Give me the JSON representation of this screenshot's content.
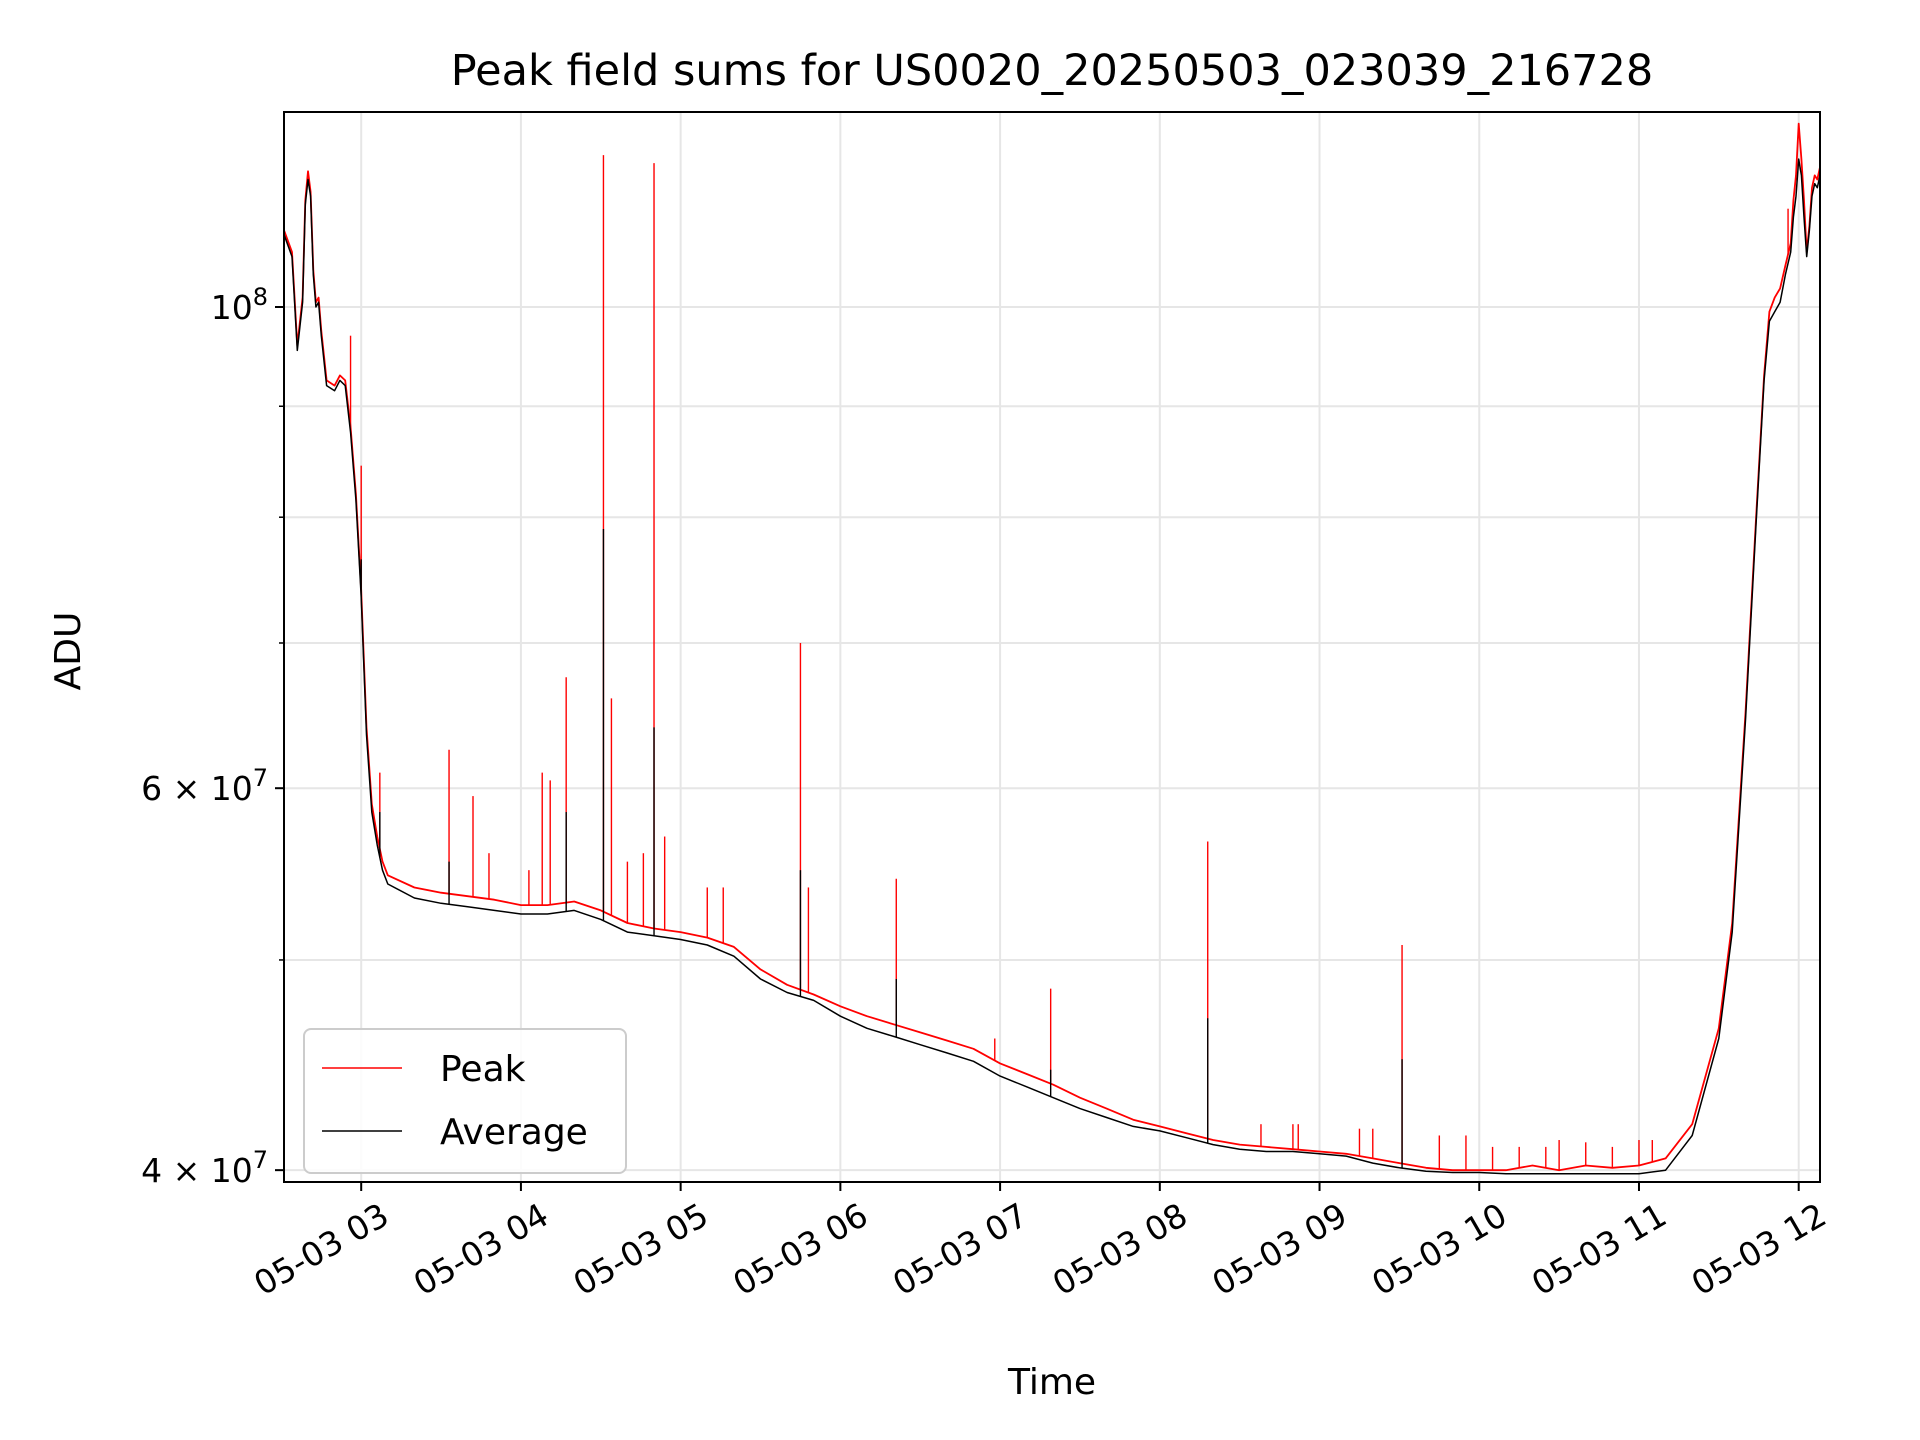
{
  "chart_data": {
    "type": "line",
    "title": "Peak field sums for US0020_20250503_023039_216728",
    "xlabel": "Time",
    "ylabel": "ADU",
    "yscale": "log",
    "xlim": [
      "2025-05-03 02:31",
      "2025-05-03 12:08"
    ],
    "ylim": [
      39500000,
      123000000
    ],
    "grid": true,
    "legend": "lower-left",
    "x_ticks": [
      {
        "t": "2025-05-03 03:00",
        "label": "05-03 03"
      },
      {
        "t": "2025-05-03 04:00",
        "label": "05-03 04"
      },
      {
        "t": "2025-05-03 05:00",
        "label": "05-03 05"
      },
      {
        "t": "2025-05-03 06:00",
        "label": "05-03 06"
      },
      {
        "t": "2025-05-03 07:00",
        "label": "05-03 07"
      },
      {
        "t": "2025-05-03 08:00",
        "label": "05-03 08"
      },
      {
        "t": "2025-05-03 09:00",
        "label": "05-03 09"
      },
      {
        "t": "2025-05-03 10:00",
        "label": "05-03 10"
      },
      {
        "t": "2025-05-03 11:00",
        "label": "05-03 11"
      },
      {
        "t": "2025-05-03 12:00",
        "label": "05-03 12"
      }
    ],
    "y_major_ticks": [
      {
        "value": 40000000,
        "base": "4",
        "exp": "7"
      },
      {
        "value": 60000000,
        "base": "6",
        "exp": "7"
      },
      {
        "value": 100000000,
        "base": "",
        "exp": "8"
      }
    ],
    "y_minor_gridlines": [
      50000000,
      70000000,
      80000000,
      90000000
    ],
    "series": [
      {
        "name": "Peak",
        "color": "#ff0000",
        "points": [
          [
            "02:31",
            108500000
          ],
          [
            "02:34",
            106000000
          ],
          [
            "02:36",
            96000000
          ],
          [
            "02:38",
            101000000
          ],
          [
            "02:39",
            112000000
          ],
          [
            "02:40",
            115500000
          ],
          [
            "02:41",
            113000000
          ],
          [
            "02:42",
            104000000
          ],
          [
            "02:43",
            100500000
          ],
          [
            "02:44",
            101000000
          ],
          [
            "02:45",
            97500000
          ],
          [
            "02:47",
            92500000
          ],
          [
            "02:50",
            92000000
          ],
          [
            "02:52",
            93000000
          ],
          [
            "02:54",
            92500000
          ],
          [
            "02:56",
            88000000
          ],
          [
            "02:58",
            82000000
          ],
          [
            "03:00",
            74000000
          ],
          [
            "03:02",
            64000000
          ],
          [
            "03:04",
            59000000
          ],
          [
            "03:06",
            57000000
          ],
          [
            "03:08",
            55500000
          ],
          [
            "03:10",
            54700000
          ],
          [
            "03:20",
            54000000
          ],
          [
            "03:30",
            53700000
          ],
          [
            "03:40",
            53500000
          ],
          [
            "03:50",
            53300000
          ],
          [
            "04:00",
            53000000
          ],
          [
            "04:10",
            53000000
          ],
          [
            "04:20",
            53200000
          ],
          [
            "04:30",
            52700000
          ],
          [
            "04:40",
            52000000
          ],
          [
            "04:50",
            51700000
          ],
          [
            "05:00",
            51500000
          ],
          [
            "05:10",
            51200000
          ],
          [
            "05:20",
            50700000
          ],
          [
            "05:30",
            49500000
          ],
          [
            "05:40",
            48700000
          ],
          [
            "05:50",
            48200000
          ],
          [
            "06:00",
            47600000
          ],
          [
            "06:10",
            47100000
          ],
          [
            "06:20",
            46700000
          ],
          [
            "06:30",
            46300000
          ],
          [
            "06:40",
            45900000
          ],
          [
            "06:50",
            45500000
          ],
          [
            "07:00",
            44800000
          ],
          [
            "07:10",
            44300000
          ],
          [
            "07:20",
            43800000
          ],
          [
            "07:30",
            43200000
          ],
          [
            "07:40",
            42700000
          ],
          [
            "07:50",
            42200000
          ],
          [
            "08:00",
            41900000
          ],
          [
            "08:10",
            41600000
          ],
          [
            "08:20",
            41300000
          ],
          [
            "08:30",
            41100000
          ],
          [
            "08:40",
            41000000
          ],
          [
            "08:50",
            40900000
          ],
          [
            "09:00",
            40800000
          ],
          [
            "09:10",
            40700000
          ],
          [
            "09:20",
            40500000
          ],
          [
            "09:30",
            40300000
          ],
          [
            "09:40",
            40100000
          ],
          [
            "09:50",
            40000000
          ],
          [
            "10:00",
            40000000
          ],
          [
            "10:10",
            40000000
          ],
          [
            "10:20",
            40200000
          ],
          [
            "10:30",
            40000000
          ],
          [
            "10:40",
            40200000
          ],
          [
            "10:50",
            40100000
          ],
          [
            "11:00",
            40200000
          ],
          [
            "11:10",
            40500000
          ],
          [
            "11:20",
            42000000
          ],
          [
            "11:30",
            46500000
          ],
          [
            "11:35",
            52000000
          ],
          [
            "11:40",
            65000000
          ],
          [
            "11:44",
            80000000
          ],
          [
            "11:47",
            93000000
          ],
          [
            "11:49",
            99500000
          ],
          [
            "11:51",
            101000000
          ],
          [
            "11:53",
            102000000
          ],
          [
            "11:55",
            104500000
          ],
          [
            "11:57",
            107000000
          ],
          [
            "11:58",
            112000000
          ],
          [
            "11:59",
            115000000
          ],
          [
            "12:00",
            121500000
          ],
          [
            "12:01",
            117000000
          ],
          [
            "12:02",
            112000000
          ],
          [
            "12:03",
            106000000
          ],
          [
            "12:04",
            109000000
          ],
          [
            "12:05",
            113500000
          ],
          [
            "12:06",
            115000000
          ],
          [
            "12:07",
            114500000
          ],
          [
            "12:08",
            116000000
          ]
        ],
        "spikes": [
          [
            "02:56",
            97000000
          ],
          [
            "03:00",
            84500000
          ],
          [
            "03:07",
            61000000
          ],
          [
            "03:33",
            62500000
          ],
          [
            "03:42",
            59500000
          ],
          [
            "03:48",
            56000000
          ],
          [
            "04:03",
            55000000
          ],
          [
            "04:08",
            61000000
          ],
          [
            "04:11",
            60500000
          ],
          [
            "04:17",
            67500000
          ],
          [
            "04:31",
            117500000
          ],
          [
            "04:34",
            66000000
          ],
          [
            "04:40",
            55500000
          ],
          [
            "04:46",
            56000000
          ],
          [
            "04:50",
            116500000
          ],
          [
            "04:54",
            57000000
          ],
          [
            "05:10",
            54000000
          ],
          [
            "05:16",
            54000000
          ],
          [
            "05:45",
            70000000
          ],
          [
            "05:48",
            54000000
          ],
          [
            "06:21",
            54500000
          ],
          [
            "06:58",
            46000000
          ],
          [
            "07:19",
            48500000
          ],
          [
            "08:18",
            56700000
          ],
          [
            "08:38",
            42000000
          ],
          [
            "08:50",
            42000000
          ],
          [
            "08:52",
            42000000
          ],
          [
            "09:15",
            41800000
          ],
          [
            "09:20",
            41800000
          ],
          [
            "09:31",
            50800000
          ],
          [
            "09:45",
            41500000
          ],
          [
            "09:55",
            41500000
          ],
          [
            "10:05",
            41000000
          ],
          [
            "10:15",
            41000000
          ],
          [
            "10:25",
            41000000
          ],
          [
            "10:30",
            41300000
          ],
          [
            "10:40",
            41200000
          ],
          [
            "10:50",
            41000000
          ],
          [
            "11:00",
            41300000
          ],
          [
            "11:05",
            41300000
          ],
          [
            "11:56",
            111000000
          ]
        ]
      },
      {
        "name": "Average",
        "color": "#000000",
        "points": [
          [
            "02:31",
            108000000
          ],
          [
            "02:34",
            105500000
          ],
          [
            "02:36",
            95500000
          ],
          [
            "02:38",
            100500000
          ],
          [
            "02:39",
            111500000
          ],
          [
            "02:40",
            114500000
          ],
          [
            "02:41",
            112500000
          ],
          [
            "02:42",
            103500000
          ],
          [
            "02:43",
            100000000
          ],
          [
            "02:44",
            100500000
          ],
          [
            "02:45",
            97000000
          ],
          [
            "02:47",
            92000000
          ],
          [
            "02:50",
            91500000
          ],
          [
            "02:52",
            92500000
          ],
          [
            "02:54",
            92000000
          ],
          [
            "02:56",
            87500000
          ],
          [
            "02:58",
            81500000
          ],
          [
            "03:00",
            73500000
          ],
          [
            "03:02",
            63500000
          ],
          [
            "03:04",
            58500000
          ],
          [
            "03:06",
            56500000
          ],
          [
            "03:08",
            55000000
          ],
          [
            "03:10",
            54200000
          ],
          [
            "03:20",
            53400000
          ],
          [
            "03:30",
            53100000
          ],
          [
            "03:40",
            52900000
          ],
          [
            "03:50",
            52700000
          ],
          [
            "04:00",
            52500000
          ],
          [
            "04:10",
            52500000
          ],
          [
            "04:20",
            52700000
          ],
          [
            "04:30",
            52200000
          ],
          [
            "04:40",
            51500000
          ],
          [
            "04:50",
            51300000
          ],
          [
            "05:00",
            51100000
          ],
          [
            "05:10",
            50800000
          ],
          [
            "05:20",
            50200000
          ],
          [
            "05:30",
            49000000
          ],
          [
            "05:40",
            48300000
          ],
          [
            "05:50",
            47900000
          ],
          [
            "06:00",
            47100000
          ],
          [
            "06:10",
            46500000
          ],
          [
            "06:20",
            46100000
          ],
          [
            "06:30",
            45700000
          ],
          [
            "06:40",
            45300000
          ],
          [
            "06:50",
            44900000
          ],
          [
            "07:00",
            44200000
          ],
          [
            "07:10",
            43700000
          ],
          [
            "07:20",
            43200000
          ],
          [
            "07:30",
            42700000
          ],
          [
            "07:40",
            42300000
          ],
          [
            "07:50",
            41900000
          ],
          [
            "08:00",
            41700000
          ],
          [
            "08:10",
            41400000
          ],
          [
            "08:20",
            41100000
          ],
          [
            "08:30",
            40900000
          ],
          [
            "08:40",
            40800000
          ],
          [
            "08:50",
            40800000
          ],
          [
            "09:00",
            40700000
          ],
          [
            "09:10",
            40600000
          ],
          [
            "09:20",
            40300000
          ],
          [
            "09:30",
            40100000
          ],
          [
            "09:40",
            39950000
          ],
          [
            "09:50",
            39900000
          ],
          [
            "10:00",
            39900000
          ],
          [
            "10:10",
            39850000
          ],
          [
            "10:20",
            39850000
          ],
          [
            "10:30",
            39850000
          ],
          [
            "10:40",
            39850000
          ],
          [
            "10:50",
            39850000
          ],
          [
            "11:00",
            39850000
          ],
          [
            "11:10",
            40000000
          ],
          [
            "11:20",
            41500000
          ],
          [
            "11:30",
            46000000
          ],
          [
            "11:35",
            51500000
          ],
          [
            "11:40",
            64500000
          ],
          [
            "11:44",
            79500000
          ],
          [
            "11:47",
            92500000
          ],
          [
            "11:49",
            98500000
          ],
          [
            "11:51",
            99500000
          ],
          [
            "11:53",
            100500000
          ],
          [
            "11:55",
            103500000
          ],
          [
            "11:57",
            106000000
          ],
          [
            "11:58",
            110000000
          ],
          [
            "11:59",
            112500000
          ],
          [
            "12:00",
            117000000
          ],
          [
            "12:01",
            115000000
          ],
          [
            "12:02",
            110000000
          ],
          [
            "12:03",
            105500000
          ],
          [
            "12:04",
            108500000
          ],
          [
            "12:05",
            112500000
          ],
          [
            "12:06",
            114000000
          ],
          [
            "12:07",
            113500000
          ],
          [
            "12:08",
            115000000
          ]
        ],
        "spikes": [
          [
            "03:00",
            76500000
          ],
          [
            "03:07",
            58500000
          ],
          [
            "03:33",
            55500000
          ],
          [
            "04:17",
            58500000
          ],
          [
            "04:31",
            79000000
          ],
          [
            "04:50",
            64000000
          ],
          [
            "05:45",
            55000000
          ],
          [
            "06:21",
            49000000
          ],
          [
            "07:19",
            44500000
          ],
          [
            "08:18",
            47000000
          ],
          [
            "09:31",
            45000000
          ]
        ]
      }
    ]
  }
}
